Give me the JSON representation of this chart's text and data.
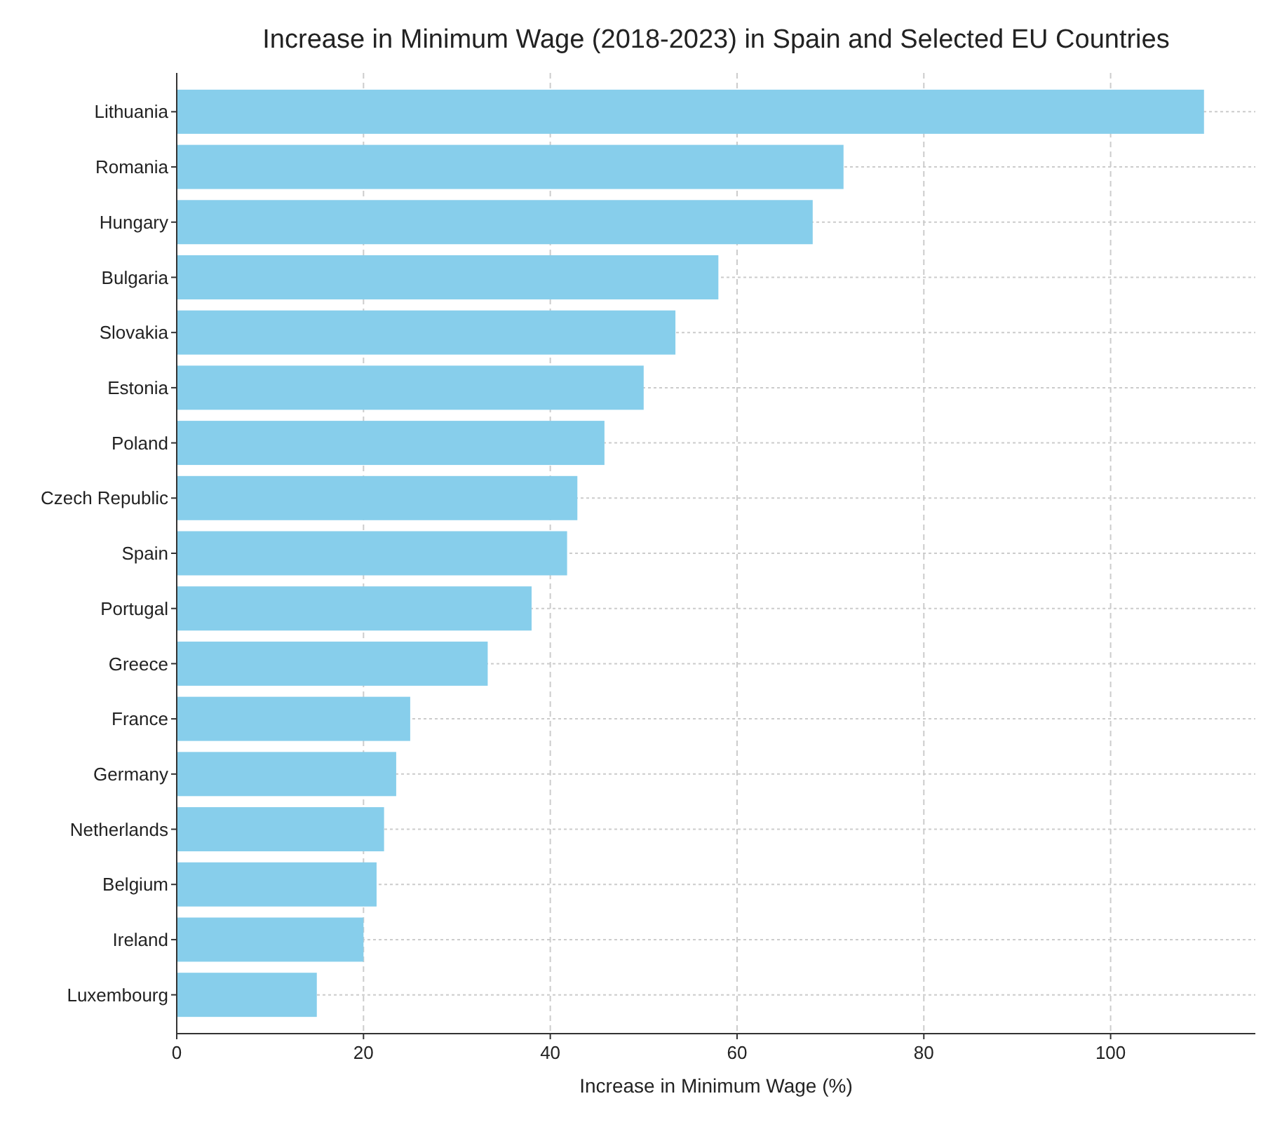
{
  "chart_data": {
    "type": "bar",
    "orientation": "horizontal",
    "title": "Increase in Minimum Wage (2018-2023) in Spain and Selected EU Countries",
    "xlabel": "Increase in Minimum Wage (%)",
    "categories": [
      "Lithuania",
      "Romania",
      "Hungary",
      "Bulgaria",
      "Slovakia",
      "Estonia",
      "Poland",
      "Czech Republic",
      "Spain",
      "Portugal",
      "Greece",
      "France",
      "Germany",
      "Netherlands",
      "Belgium",
      "Ireland",
      "Luxembourg"
    ],
    "values": [
      110,
      71.4,
      68.1,
      58,
      53.4,
      50,
      45.8,
      42.9,
      41.8,
      38,
      33.3,
      25,
      23.5,
      22.2,
      21.4,
      20,
      15
    ],
    "color": "#87ceeb",
    "xlim": [
      0,
      115.5
    ],
    "xticks": [
      0,
      20,
      40,
      60,
      80,
      100
    ],
    "grid": true
  }
}
